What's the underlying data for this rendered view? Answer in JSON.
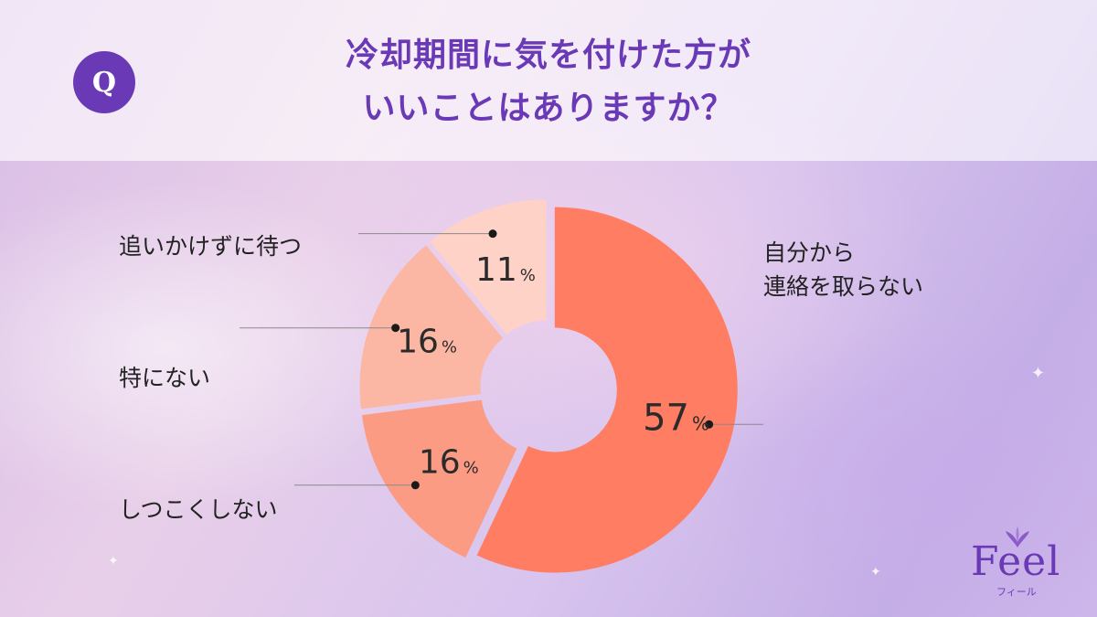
{
  "question": {
    "badge": "Q",
    "title_line1": "冷却期間に気を付けた方が",
    "title_line2": "いいことはありますか？"
  },
  "chart_data": {
    "type": "pie",
    "title": "冷却期間に気を付けた方がいいことはありますか？",
    "categories": [
      "自分から連絡を取らない",
      "しつこくしない",
      "特にない",
      "追いかけずに待つ"
    ],
    "values": [
      57,
      16,
      16,
      11
    ],
    "unit": "%",
    "colors": [
      "#fe7d63",
      "#fb9b84",
      "#fcb6a4",
      "#fed2c6"
    ],
    "donut": true
  },
  "labels": {
    "jibun_line1": "自分から",
    "jibun_line2": "連絡を取らない",
    "shitsukoku": "しつこくしない",
    "tokuni": "特にない",
    "oikakezu": "追いかけずに待つ"
  },
  "logo": {
    "name": "Feel",
    "kana": "フィール",
    "accent_color": "#6a3ab6"
  }
}
